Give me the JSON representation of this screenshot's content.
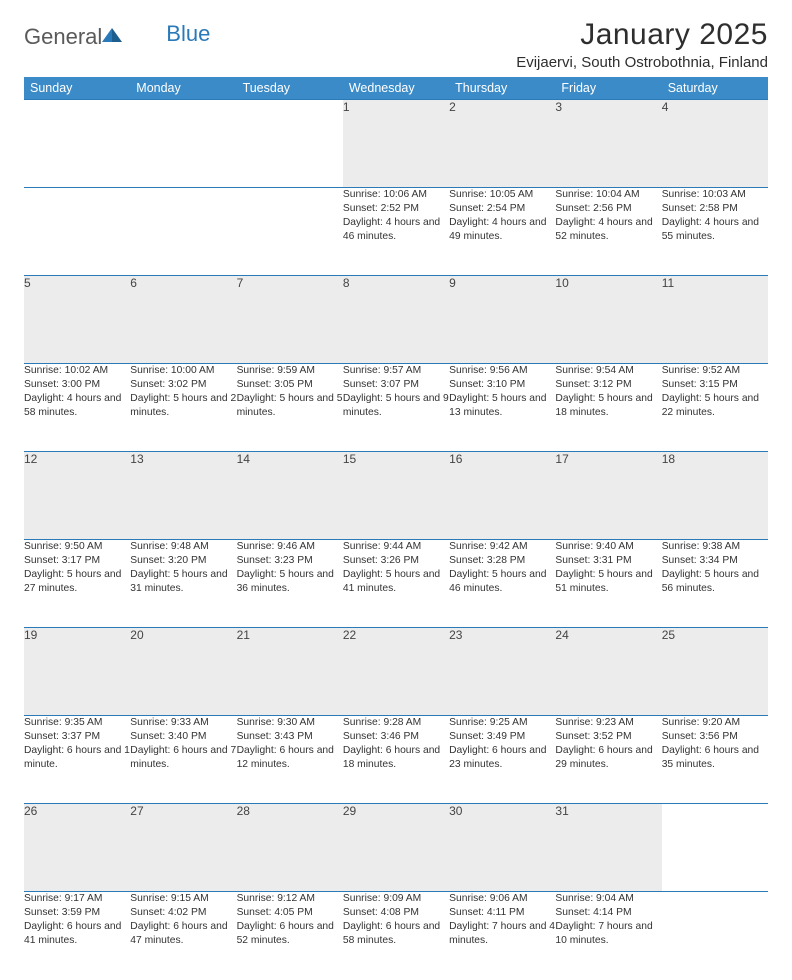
{
  "brand": {
    "word1": "General",
    "word2": "Blue"
  },
  "title": "January 2025",
  "location": "Evijaervi, South Ostrobothnia, Finland",
  "colors": {
    "header_bg": "#3b8bc8",
    "border": "#2a7ab9",
    "daynum_bg": "#ececec",
    "logo_gray": "#5a5a5a",
    "logo_blue": "#2a7ab9"
  },
  "day_headers": [
    "Sunday",
    "Monday",
    "Tuesday",
    "Wednesday",
    "Thursday",
    "Friday",
    "Saturday"
  ],
  "weeks": [
    [
      null,
      null,
      null,
      {
        "n": "1",
        "sr": "10:06 AM",
        "ss": "2:52 PM",
        "dl": "4 hours and 46 minutes."
      },
      {
        "n": "2",
        "sr": "10:05 AM",
        "ss": "2:54 PM",
        "dl": "4 hours and 49 minutes."
      },
      {
        "n": "3",
        "sr": "10:04 AM",
        "ss": "2:56 PM",
        "dl": "4 hours and 52 minutes."
      },
      {
        "n": "4",
        "sr": "10:03 AM",
        "ss": "2:58 PM",
        "dl": "4 hours and 55 minutes."
      }
    ],
    [
      {
        "n": "5",
        "sr": "10:02 AM",
        "ss": "3:00 PM",
        "dl": "4 hours and 58 minutes."
      },
      {
        "n": "6",
        "sr": "10:00 AM",
        "ss": "3:02 PM",
        "dl": "5 hours and 2 minutes."
      },
      {
        "n": "7",
        "sr": "9:59 AM",
        "ss": "3:05 PM",
        "dl": "5 hours and 5 minutes."
      },
      {
        "n": "8",
        "sr": "9:57 AM",
        "ss": "3:07 PM",
        "dl": "5 hours and 9 minutes."
      },
      {
        "n": "9",
        "sr": "9:56 AM",
        "ss": "3:10 PM",
        "dl": "5 hours and 13 minutes."
      },
      {
        "n": "10",
        "sr": "9:54 AM",
        "ss": "3:12 PM",
        "dl": "5 hours and 18 minutes."
      },
      {
        "n": "11",
        "sr": "9:52 AM",
        "ss": "3:15 PM",
        "dl": "5 hours and 22 minutes."
      }
    ],
    [
      {
        "n": "12",
        "sr": "9:50 AM",
        "ss": "3:17 PM",
        "dl": "5 hours and 27 minutes."
      },
      {
        "n": "13",
        "sr": "9:48 AM",
        "ss": "3:20 PM",
        "dl": "5 hours and 31 minutes."
      },
      {
        "n": "14",
        "sr": "9:46 AM",
        "ss": "3:23 PM",
        "dl": "5 hours and 36 minutes."
      },
      {
        "n": "15",
        "sr": "9:44 AM",
        "ss": "3:26 PM",
        "dl": "5 hours and 41 minutes."
      },
      {
        "n": "16",
        "sr": "9:42 AM",
        "ss": "3:28 PM",
        "dl": "5 hours and 46 minutes."
      },
      {
        "n": "17",
        "sr": "9:40 AM",
        "ss": "3:31 PM",
        "dl": "5 hours and 51 minutes."
      },
      {
        "n": "18",
        "sr": "9:38 AM",
        "ss": "3:34 PM",
        "dl": "5 hours and 56 minutes."
      }
    ],
    [
      {
        "n": "19",
        "sr": "9:35 AM",
        "ss": "3:37 PM",
        "dl": "6 hours and 1 minute."
      },
      {
        "n": "20",
        "sr": "9:33 AM",
        "ss": "3:40 PM",
        "dl": "6 hours and 7 minutes."
      },
      {
        "n": "21",
        "sr": "9:30 AM",
        "ss": "3:43 PM",
        "dl": "6 hours and 12 minutes."
      },
      {
        "n": "22",
        "sr": "9:28 AM",
        "ss": "3:46 PM",
        "dl": "6 hours and 18 minutes."
      },
      {
        "n": "23",
        "sr": "9:25 AM",
        "ss": "3:49 PM",
        "dl": "6 hours and 23 minutes."
      },
      {
        "n": "24",
        "sr": "9:23 AM",
        "ss": "3:52 PM",
        "dl": "6 hours and 29 minutes."
      },
      {
        "n": "25",
        "sr": "9:20 AM",
        "ss": "3:56 PM",
        "dl": "6 hours and 35 minutes."
      }
    ],
    [
      {
        "n": "26",
        "sr": "9:17 AM",
        "ss": "3:59 PM",
        "dl": "6 hours and 41 minutes."
      },
      {
        "n": "27",
        "sr": "9:15 AM",
        "ss": "4:02 PM",
        "dl": "6 hours and 47 minutes."
      },
      {
        "n": "28",
        "sr": "9:12 AM",
        "ss": "4:05 PM",
        "dl": "6 hours and 52 minutes."
      },
      {
        "n": "29",
        "sr": "9:09 AM",
        "ss": "4:08 PM",
        "dl": "6 hours and 58 minutes."
      },
      {
        "n": "30",
        "sr": "9:06 AM",
        "ss": "4:11 PM",
        "dl": "7 hours and 4 minutes."
      },
      {
        "n": "31",
        "sr": "9:04 AM",
        "ss": "4:14 PM",
        "dl": "7 hours and 10 minutes."
      },
      null
    ]
  ],
  "labels": {
    "sunrise": "Sunrise: ",
    "sunset": "Sunset: ",
    "daylight": "Daylight: "
  }
}
